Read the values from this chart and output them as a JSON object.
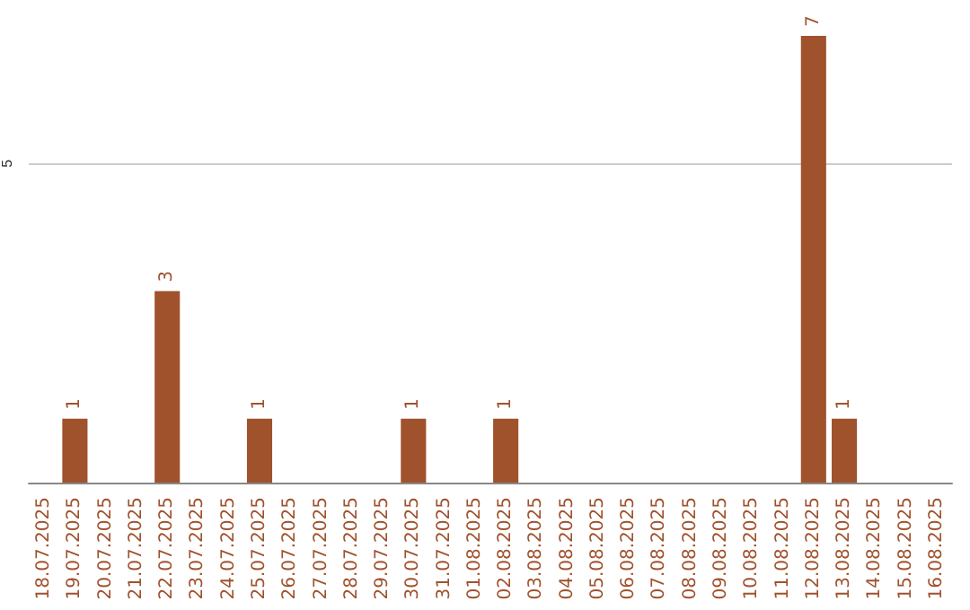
{
  "chart_data": {
    "type": "bar",
    "categories": [
      "18.07.2025",
      "19.07.2025",
      "20.07.2025",
      "21.07.2025",
      "22.07.2025",
      "23.07.2025",
      "24.07.2025",
      "25.07.2025",
      "26.07.2025",
      "27.07.2025",
      "28.07.2025",
      "29.07.2025",
      "30.07.2025",
      "31.07.2025",
      "01.08.2025",
      "02.08.2025",
      "03.08.2025",
      "04.08.2025",
      "05.08.2025",
      "06.08.2025",
      "07.08.2025",
      "08.08.2025",
      "09.08.2025",
      "10.08.2025",
      "11.08.2025",
      "12.08.2025",
      "13.08.2025",
      "14.08.2025",
      "15.08.2025",
      "16.08.2025"
    ],
    "values": [
      0,
      1,
      0,
      0,
      3,
      0,
      0,
      1,
      0,
      0,
      0,
      0,
      1,
      0,
      0,
      1,
      0,
      0,
      0,
      0,
      0,
      0,
      0,
      0,
      0,
      7,
      1,
      0,
      0,
      0
    ],
    "value_labels": [
      null,
      "1",
      null,
      null,
      "3",
      null,
      null,
      "1",
      null,
      null,
      null,
      null,
      "1",
      null,
      null,
      "1",
      null,
      null,
      null,
      null,
      null,
      null,
      null,
      null,
      null,
      "7",
      "1",
      null,
      null,
      null
    ],
    "color": "#a0522d",
    "ylim": [
      0,
      7
    ],
    "yticks": [
      5
    ],
    "grid": "y"
  }
}
